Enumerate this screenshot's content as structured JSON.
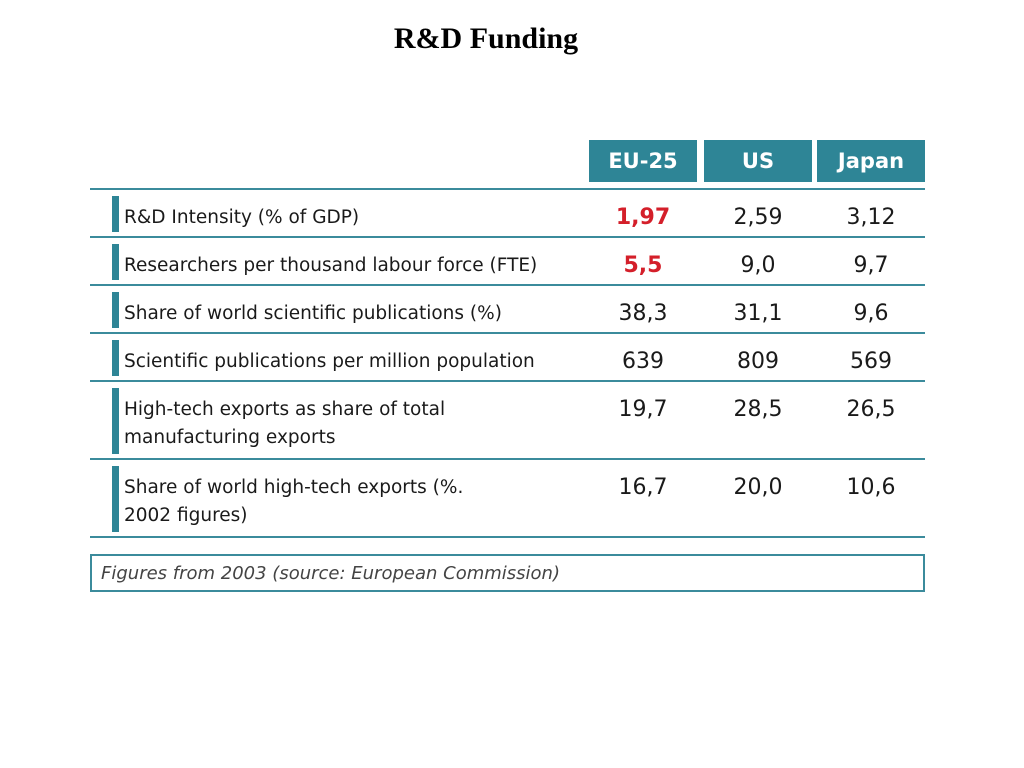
{
  "title": "R&D Funding",
  "table": {
    "columns": [
      "EU-25",
      "US",
      "Japan"
    ],
    "rows": [
      {
        "label": "R&D Intensity (% of GDP)",
        "values": [
          "1,97",
          "2,59",
          "3,12"
        ]
      },
      {
        "label": "Researchers per thousand labour force (FTE)",
        "values": [
          "5,5",
          "9,0",
          "9,7"
        ]
      },
      {
        "label": "Share of world scientific publications (%)",
        "values": [
          "38,3",
          "31,1",
          "9,6"
        ]
      },
      {
        "label": "Scientific publications per million population",
        "values": [
          "639",
          "809",
          "569"
        ]
      },
      {
        "label": "High-tech exports as share of total manufacturing exports",
        "values": [
          "19,7",
          "28,5",
          "26,5"
        ]
      },
      {
        "label": "Share of world high-tech exports (%. 2002 figures)",
        "values": [
          "16,7",
          "20,0",
          "10,6"
        ]
      }
    ],
    "footnote": "Figures from 2003 (source: European Commission)"
  },
  "colors": {
    "header_bg": "#2e8596",
    "rule": "#3b8b9c",
    "highlight": "#d41f2a"
  }
}
